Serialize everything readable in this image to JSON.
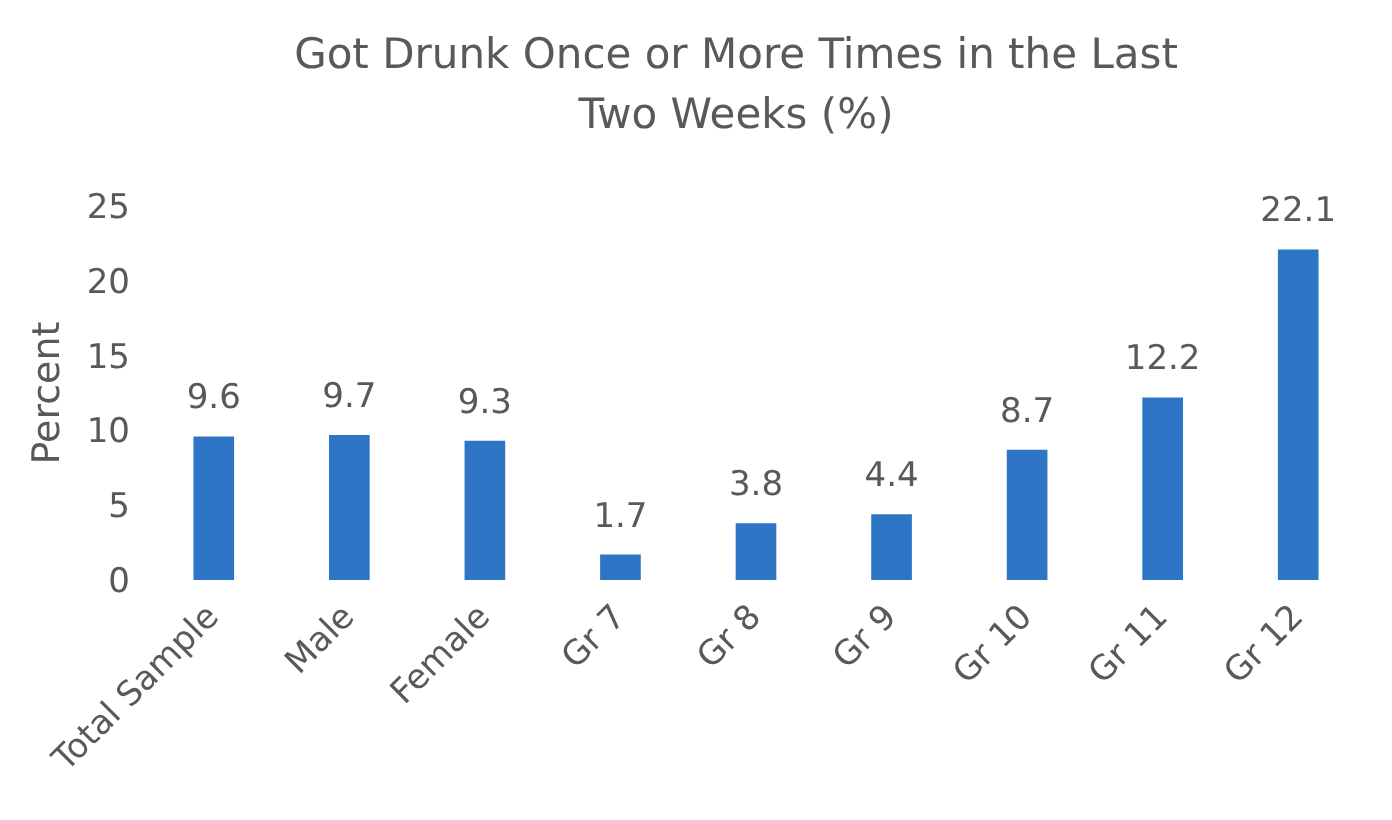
{
  "chart_data": {
    "type": "bar",
    "title": "Got Drunk Once or More Times in the Last Two Weeks (%)",
    "ylabel": "Percent",
    "categories": [
      "Total Sample",
      "Male",
      "Female",
      "Gr 7",
      "Gr 8",
      "Gr 9",
      "Gr 10",
      "Gr 11",
      "Gr 12"
    ],
    "values": [
      9.6,
      9.7,
      9.3,
      1.7,
      3.8,
      4.4,
      8.7,
      12.2,
      22.1
    ],
    "color": "#2e75c6",
    "ylim": [
      0,
      25
    ],
    "yticks": [
      0,
      5,
      10,
      15,
      20,
      25
    ],
    "data_labels": true,
    "grid": false,
    "legend": false
  }
}
